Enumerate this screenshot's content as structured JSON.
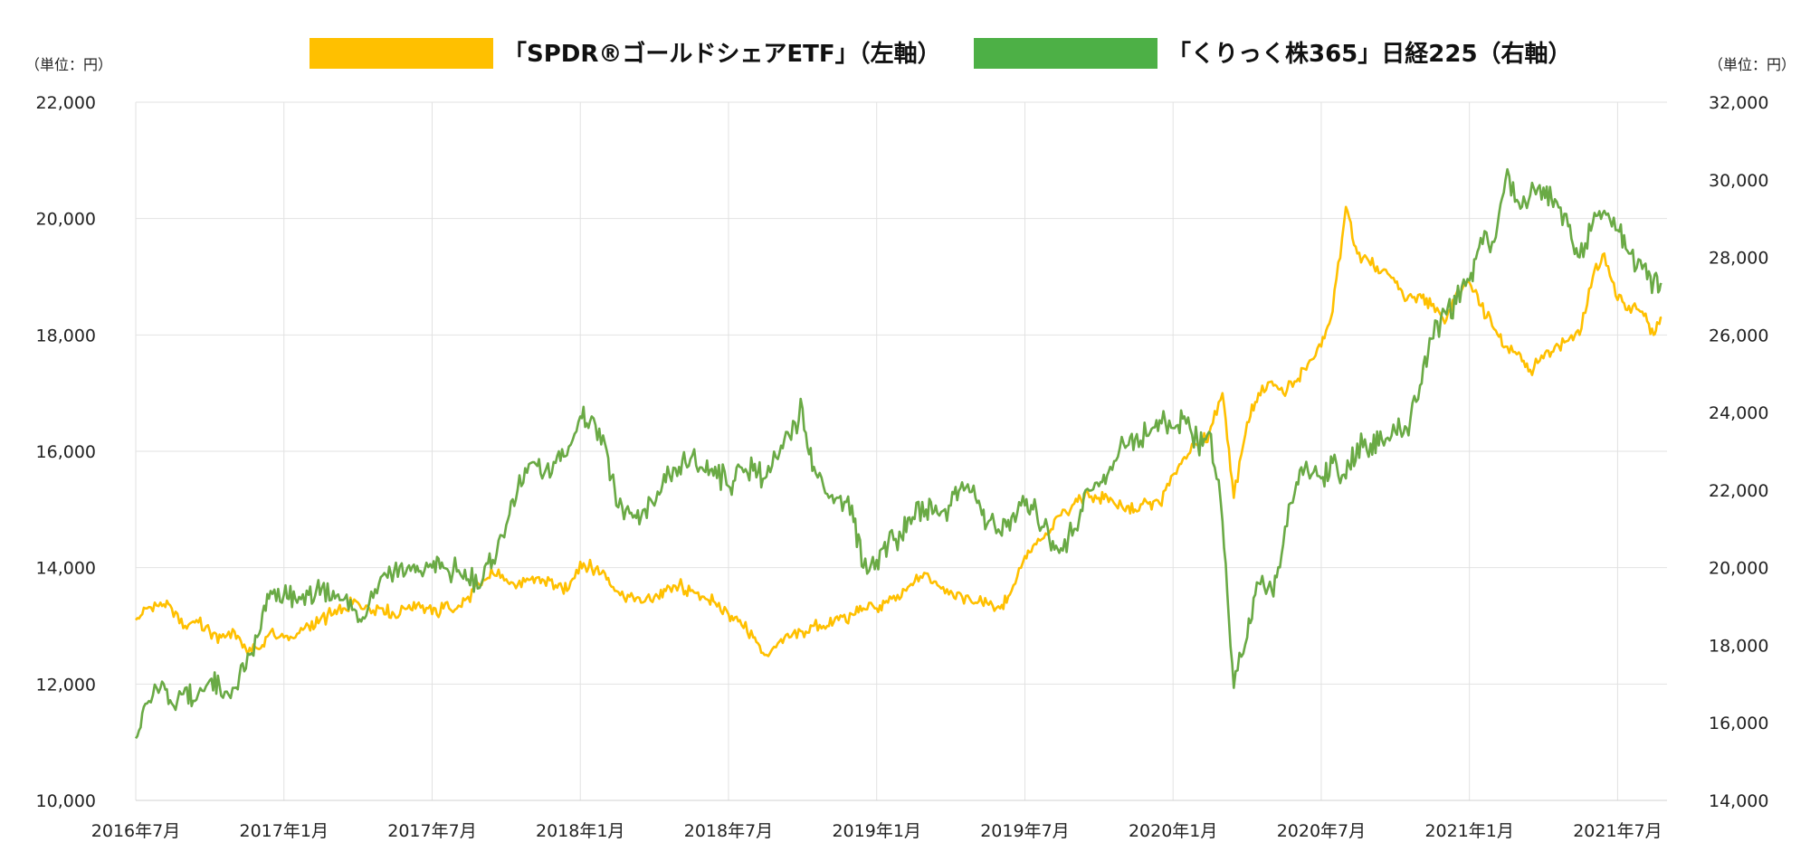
{
  "chart_data": {
    "type": "line",
    "title": "",
    "legend_placement": "top",
    "grid": true,
    "x_ticks": [
      "2016年7月",
      "2017年1月",
      "2017年7月",
      "2018年1月",
      "2018年7月",
      "2019年1月",
      "2019年7月",
      "2020年1月",
      "2020年7月",
      "2021年1月",
      "2021年7月"
    ],
    "x_range": [
      "2016-07",
      "2021-09"
    ],
    "y_left": {
      "unit_label": "（単位：円）",
      "range": [
        10000,
        22000
      ],
      "ticks": [
        "10,000",
        "12,000",
        "14,000",
        "16,000",
        "18,000",
        "20,000",
        "22,000"
      ]
    },
    "y_right": {
      "unit_label": "（単位：円）",
      "range": [
        14000,
        32000
      ],
      "ticks": [
        "14,000",
        "16,000",
        "18,000",
        "20,000",
        "22,000",
        "24,000",
        "26,000",
        "28,000",
        "30,000",
        "32,000"
      ]
    },
    "series": [
      {
        "name": "「SPDR®ゴールドシェアETF」（左軸）",
        "axis": "left",
        "color": "#FFC000",
        "points": [
          [
            "2016-07-01",
            13100
          ],
          [
            "2016-07-15",
            13300
          ],
          [
            "2016-08-01",
            13400
          ],
          [
            "2016-08-15",
            13300
          ],
          [
            "2016-09-01",
            13000
          ],
          [
            "2016-09-15",
            13100
          ],
          [
            "2016-10-01",
            12900
          ],
          [
            "2016-10-15",
            12800
          ],
          [
            "2016-11-01",
            12900
          ],
          [
            "2016-11-15",
            12600
          ],
          [
            "2016-12-01",
            12600
          ],
          [
            "2016-12-15",
            12900
          ],
          [
            "2017-01-01",
            12800
          ],
          [
            "2017-01-15",
            12800
          ],
          [
            "2017-02-01",
            13000
          ],
          [
            "2017-02-15",
            13100
          ],
          [
            "2017-03-01",
            13200
          ],
          [
            "2017-03-15",
            13300
          ],
          [
            "2017-04-01",
            13400
          ],
          [
            "2017-04-15",
            13300
          ],
          [
            "2017-05-01",
            13300
          ],
          [
            "2017-05-15",
            13200
          ],
          [
            "2017-06-01",
            13300
          ],
          [
            "2017-06-15",
            13400
          ],
          [
            "2017-07-01",
            13200
          ],
          [
            "2017-07-15",
            13300
          ],
          [
            "2017-08-01",
            13300
          ],
          [
            "2017-08-15",
            13500
          ],
          [
            "2017-09-01",
            13700
          ],
          [
            "2017-09-15",
            13900
          ],
          [
            "2017-10-01",
            13800
          ],
          [
            "2017-10-15",
            13700
          ],
          [
            "2017-11-01",
            13800
          ],
          [
            "2017-11-15",
            13800
          ],
          [
            "2017-12-01",
            13700
          ],
          [
            "2017-12-15",
            13600
          ],
          [
            "2018-01-01",
            14100
          ],
          [
            "2018-01-15",
            14000
          ],
          [
            "2018-02-01",
            13900
          ],
          [
            "2018-02-15",
            13600
          ],
          [
            "2018-03-01",
            13500
          ],
          [
            "2018-03-15",
            13400
          ],
          [
            "2018-04-01",
            13500
          ],
          [
            "2018-04-15",
            13600
          ],
          [
            "2018-05-01",
            13700
          ],
          [
            "2018-05-15",
            13600
          ],
          [
            "2018-06-01",
            13500
          ],
          [
            "2018-06-15",
            13400
          ],
          [
            "2018-07-01",
            13200
          ],
          [
            "2018-07-15",
            13100
          ],
          [
            "2018-08-01",
            12800
          ],
          [
            "2018-08-15",
            12500
          ],
          [
            "2018-09-01",
            12700
          ],
          [
            "2018-09-15",
            12800
          ],
          [
            "2018-10-01",
            12900
          ],
          [
            "2018-10-15",
            13000
          ],
          [
            "2018-11-01",
            13000
          ],
          [
            "2018-11-15",
            13100
          ],
          [
            "2018-12-01",
            13200
          ],
          [
            "2018-12-15",
            13300
          ],
          [
            "2019-01-01",
            13300
          ],
          [
            "2019-01-15",
            13400
          ],
          [
            "2019-02-01",
            13500
          ],
          [
            "2019-02-15",
            13700
          ],
          [
            "2019-03-01",
            13900
          ],
          [
            "2019-03-15",
            13700
          ],
          [
            "2019-04-01",
            13600
          ],
          [
            "2019-04-15",
            13500
          ],
          [
            "2019-05-01",
            13400
          ],
          [
            "2019-05-15",
            13400
          ],
          [
            "2019-06-01",
            13300
          ],
          [
            "2019-06-15",
            13600
          ],
          [
            "2019-07-01",
            14200
          ],
          [
            "2019-07-15",
            14400
          ],
          [
            "2019-08-01",
            14600
          ],
          [
            "2019-08-15",
            14900
          ],
          [
            "2019-09-01",
            15100
          ],
          [
            "2019-09-15",
            15300
          ],
          [
            "2019-10-01",
            15200
          ],
          [
            "2019-10-15",
            15200
          ],
          [
            "2019-11-01",
            15000
          ],
          [
            "2019-11-15",
            15000
          ],
          [
            "2019-12-01",
            15100
          ],
          [
            "2019-12-15",
            15100
          ],
          [
            "2020-01-01",
            15600
          ],
          [
            "2020-01-15",
            15900
          ],
          [
            "2020-02-01",
            16100
          ],
          [
            "2020-02-15",
            16300
          ],
          [
            "2020-03-01",
            17000
          ],
          [
            "2020-03-15",
            15200
          ],
          [
            "2020-04-01",
            16500
          ],
          [
            "2020-04-15",
            17000
          ],
          [
            "2020-05-01",
            17200
          ],
          [
            "2020-05-15",
            17000
          ],
          [
            "2020-06-01",
            17200
          ],
          [
            "2020-06-15",
            17500
          ],
          [
            "2020-07-01",
            17800
          ],
          [
            "2020-07-15",
            18400
          ],
          [
            "2020-08-01",
            20200
          ],
          [
            "2020-08-15",
            19400
          ],
          [
            "2020-09-01",
            19200
          ],
          [
            "2020-09-15",
            19100
          ],
          [
            "2020-10-01",
            18900
          ],
          [
            "2020-10-15",
            18600
          ],
          [
            "2020-11-01",
            18700
          ],
          [
            "2020-11-15",
            18500
          ],
          [
            "2020-12-01",
            18200
          ],
          [
            "2020-12-15",
            18700
          ],
          [
            "2021-01-01",
            18900
          ],
          [
            "2021-01-15",
            18500
          ],
          [
            "2021-02-01",
            18100
          ],
          [
            "2021-02-15",
            17800
          ],
          [
            "2021-03-01",
            17700
          ],
          [
            "2021-03-15",
            17400
          ],
          [
            "2021-04-01",
            17600
          ],
          [
            "2021-04-15",
            17800
          ],
          [
            "2021-05-01",
            17900
          ],
          [
            "2021-05-15",
            18000
          ],
          [
            "2021-06-01",
            19000
          ],
          [
            "2021-06-15",
            19400
          ],
          [
            "2021-07-01",
            18600
          ],
          [
            "2021-07-15",
            18500
          ],
          [
            "2021-08-01",
            18400
          ],
          [
            "2021-08-15",
            18000
          ],
          [
            "2021-08-25",
            18300
          ]
        ]
      },
      {
        "name": "「くりっく株365」日経225（右軸）",
        "axis": "right",
        "color": "#6AAA45",
        "points": [
          [
            "2016-07-01",
            15600
          ],
          [
            "2016-07-15",
            16500
          ],
          [
            "2016-08-01",
            16900
          ],
          [
            "2016-08-15",
            16500
          ],
          [
            "2016-09-01",
            16900
          ],
          [
            "2016-09-15",
            16600
          ],
          [
            "2016-10-01",
            17100
          ],
          [
            "2016-10-15",
            16700
          ],
          [
            "2016-11-01",
            16900
          ],
          [
            "2016-11-15",
            17400
          ],
          [
            "2016-12-01",
            18300
          ],
          [
            "2016-12-15",
            19400
          ],
          [
            "2017-01-01",
            19300
          ],
          [
            "2017-01-15",
            19200
          ],
          [
            "2017-02-01",
            19300
          ],
          [
            "2017-02-15",
            19300
          ],
          [
            "2017-03-01",
            19400
          ],
          [
            "2017-03-15",
            19200
          ],
          [
            "2017-04-01",
            18600
          ],
          [
            "2017-04-15",
            19100
          ],
          [
            "2017-05-01",
            19800
          ],
          [
            "2017-05-15",
            19900
          ],
          [
            "2017-06-01",
            20000
          ],
          [
            "2017-06-15",
            19900
          ],
          [
            "2017-07-01",
            20000
          ],
          [
            "2017-07-15",
            20000
          ],
          [
            "2017-08-01",
            19900
          ],
          [
            "2017-08-15",
            19700
          ],
          [
            "2017-09-01",
            19600
          ],
          [
            "2017-09-15",
            20200
          ],
          [
            "2017-10-01",
            21100
          ],
          [
            "2017-10-15",
            22000
          ],
          [
            "2017-11-01",
            22700
          ],
          [
            "2017-11-15",
            22300
          ],
          [
            "2017-12-01",
            22700
          ],
          [
            "2017-12-15",
            22900
          ],
          [
            "2018-01-01",
            23900
          ],
          [
            "2018-01-15",
            23900
          ],
          [
            "2018-02-01",
            23200
          ],
          [
            "2018-02-15",
            21600
          ],
          [
            "2018-03-01",
            21400
          ],
          [
            "2018-03-15",
            21300
          ],
          [
            "2018-04-01",
            21600
          ],
          [
            "2018-04-15",
            22200
          ],
          [
            "2018-05-01",
            22600
          ],
          [
            "2018-05-15",
            22800
          ],
          [
            "2018-06-01",
            22500
          ],
          [
            "2018-06-15",
            22600
          ],
          [
            "2018-07-01",
            22100
          ],
          [
            "2018-07-15",
            22600
          ],
          [
            "2018-08-01",
            22500
          ],
          [
            "2018-08-15",
            22300
          ],
          [
            "2018-09-01",
            22800
          ],
          [
            "2018-09-15",
            23400
          ],
          [
            "2018-10-01",
            24100
          ],
          [
            "2018-10-15",
            22600
          ],
          [
            "2018-11-01",
            21900
          ],
          [
            "2018-11-15",
            21800
          ],
          [
            "2018-12-01",
            21600
          ],
          [
            "2018-12-15",
            20000
          ],
          [
            "2019-01-01",
            20200
          ],
          [
            "2019-01-15",
            20600
          ],
          [
            "2019-02-01",
            20800
          ],
          [
            "2019-02-15",
            21300
          ],
          [
            "2019-03-01",
            21500
          ],
          [
            "2019-03-15",
            21400
          ],
          [
            "2019-04-01",
            21600
          ],
          [
            "2019-04-15",
            22200
          ],
          [
            "2019-05-01",
            21800
          ],
          [
            "2019-05-15",
            21100
          ],
          [
            "2019-06-01",
            20900
          ],
          [
            "2019-06-15",
            21300
          ],
          [
            "2019-07-01",
            21600
          ],
          [
            "2019-07-15",
            21500
          ],
          [
            "2019-08-01",
            20700
          ],
          [
            "2019-08-15",
            20500
          ],
          [
            "2019-09-01",
            21000
          ],
          [
            "2019-09-15",
            22000
          ],
          [
            "2019-10-01",
            22100
          ],
          [
            "2019-10-15",
            22600
          ],
          [
            "2019-11-01",
            23200
          ],
          [
            "2019-11-15",
            23300
          ],
          [
            "2019-12-01",
            23400
          ],
          [
            "2019-12-15",
            23800
          ],
          [
            "2020-01-01",
            23600
          ],
          [
            "2020-01-15",
            23900
          ],
          [
            "2020-02-01",
            23200
          ],
          [
            "2020-02-15",
            23500
          ],
          [
            "2020-03-01",
            21200
          ],
          [
            "2020-03-15",
            16900
          ],
          [
            "2020-04-01",
            18200
          ],
          [
            "2020-04-15",
            19600
          ],
          [
            "2020-05-01",
            19400
          ],
          [
            "2020-05-15",
            20600
          ],
          [
            "2020-06-01",
            22200
          ],
          [
            "2020-06-15",
            22500
          ],
          [
            "2020-07-01",
            22300
          ],
          [
            "2020-07-15",
            22700
          ],
          [
            "2020-08-01",
            22300
          ],
          [
            "2020-08-15",
            23200
          ],
          [
            "2020-09-01",
            23200
          ],
          [
            "2020-09-15",
            23300
          ],
          [
            "2020-10-01",
            23500
          ],
          [
            "2020-10-15",
            23600
          ],
          [
            "2020-11-01",
            24700
          ],
          [
            "2020-11-15",
            25900
          ],
          [
            "2020-12-01",
            26600
          ],
          [
            "2020-12-15",
            26800
          ],
          [
            "2021-01-01",
            27400
          ],
          [
            "2021-01-15",
            28500
          ],
          [
            "2021-02-01",
            28400
          ],
          [
            "2021-02-15",
            30000
          ],
          [
            "2021-03-01",
            29400
          ],
          [
            "2021-03-15",
            29600
          ],
          [
            "2021-04-01",
            29800
          ],
          [
            "2021-04-15",
            29500
          ],
          [
            "2021-05-01",
            28800
          ],
          [
            "2021-05-15",
            28000
          ],
          [
            "2021-06-01",
            28900
          ],
          [
            "2021-06-15",
            29200
          ],
          [
            "2021-07-01",
            28700
          ],
          [
            "2021-07-15",
            28100
          ],
          [
            "2021-08-01",
            27700
          ],
          [
            "2021-08-15",
            27400
          ],
          [
            "2021-08-25",
            27300
          ]
        ]
      }
    ]
  }
}
